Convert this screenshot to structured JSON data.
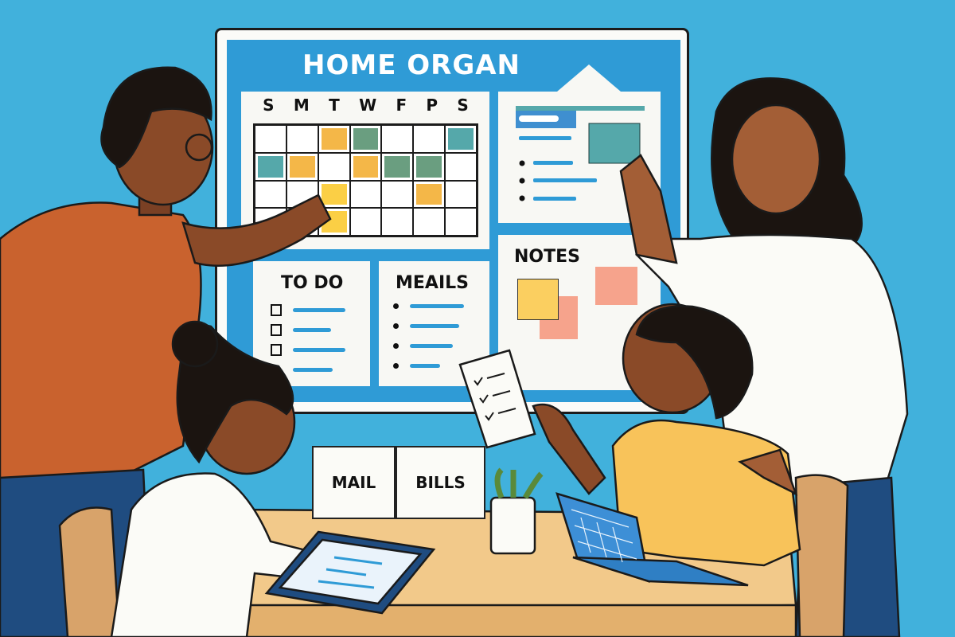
{
  "board": {
    "title": "HOME ORGAN",
    "calendar": {
      "days": [
        "S",
        "M",
        "T",
        "W",
        "F",
        "P",
        "S"
      ],
      "notes": [
        {
          "row": 0,
          "col": 2,
          "color": "#f4b748"
        },
        {
          "row": 0,
          "col": 3,
          "color": "#6a9e80"
        },
        {
          "row": 0,
          "col": 6,
          "color": "#55a8aa"
        },
        {
          "row": 1,
          "col": 0,
          "color": "#55a8aa"
        },
        {
          "row": 1,
          "col": 1,
          "color": "#f4b748"
        },
        {
          "row": 1,
          "col": 3,
          "color": "#f4b748"
        },
        {
          "row": 1,
          "col": 4,
          "color": "#6a9e80"
        },
        {
          "row": 1,
          "col": 5,
          "color": "#6a9e80"
        },
        {
          "row": 2,
          "col": 2,
          "color": "#fbcf45"
        },
        {
          "row": 2,
          "col": 5,
          "color": "#f4b748"
        },
        {
          "row": 3,
          "col": 2,
          "color": "#fbcf45"
        }
      ]
    },
    "todo": {
      "title": "TO DO"
    },
    "meals": {
      "title": "MEAILS"
    },
    "notes": {
      "title": "NOTES"
    }
  },
  "bins": {
    "mail": "MAIL",
    "bills": "BILLS"
  },
  "colors": {
    "background": "#41b1dc",
    "board_blue": "#2f9bd6",
    "table": "#f2c98a"
  }
}
